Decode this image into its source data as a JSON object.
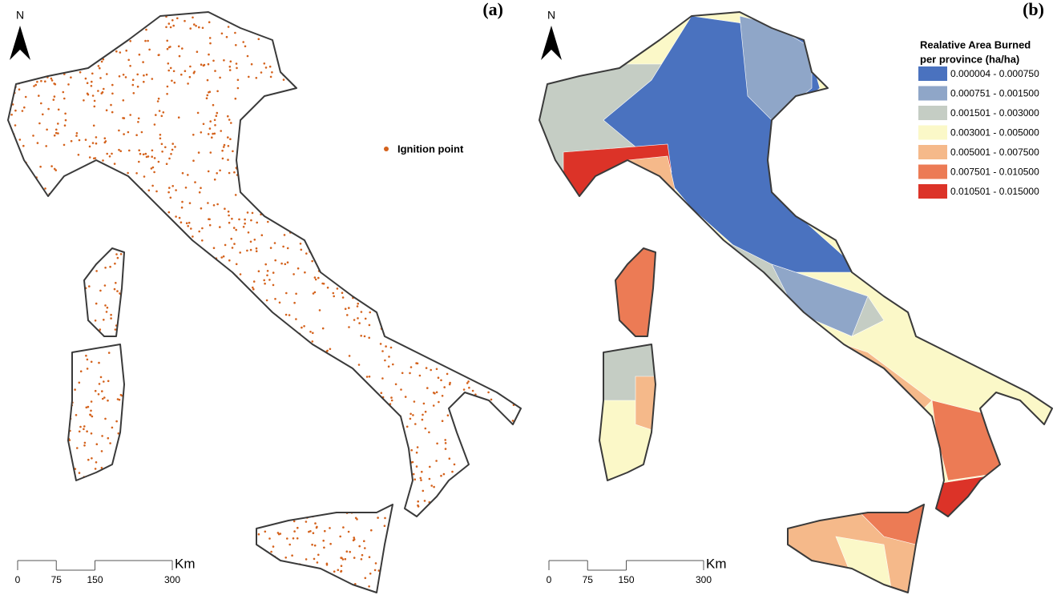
{
  "panels": [
    {
      "label": "(a)",
      "north": "N",
      "legend": {
        "items": [
          {
            "label": "Ignition point",
            "color": "#d4621c"
          }
        ]
      },
      "scale": {
        "unit": "Km",
        "ticks": [
          0,
          75,
          150,
          300
        ]
      }
    },
    {
      "label": "(b)",
      "north": "N",
      "legend": {
        "title_lines": [
          "Realative Area Burned",
          "per province (ha/ha)"
        ],
        "items": [
          {
            "label": "0.000004 - 0.000750",
            "color": "#4a72bf"
          },
          {
            "label": "0.000751 - 0.001500",
            "color": "#8fa6c8"
          },
          {
            "label": "0.001501 - 0.003000",
            "color": "#c5cdc4"
          },
          {
            "label": "0.003001 - 0.005000",
            "color": "#fbf8c8"
          },
          {
            "label": "0.005001 - 0.007500",
            "color": "#f5b98a"
          },
          {
            "label": "0.007501 - 0.010500",
            "color": "#ec7b55"
          },
          {
            "label": "0.010501 - 0.015000",
            "color": "#dc3328"
          }
        ]
      },
      "scale": {
        "unit": "Km",
        "ticks": [
          0,
          75,
          150,
          300
        ]
      }
    }
  ]
}
